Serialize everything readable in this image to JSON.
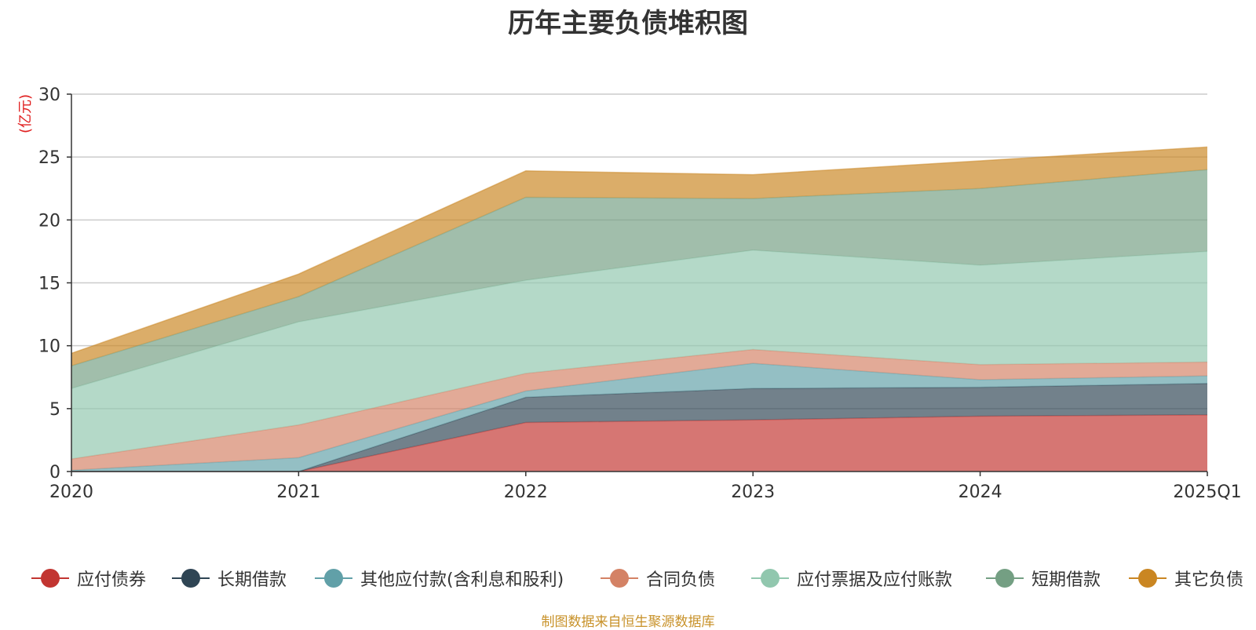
{
  "chart_data": {
    "type": "area",
    "stacked": true,
    "title": "历年主要负债堆积图",
    "ylabel": "(亿元)",
    "xlabel": "",
    "categories": [
      "2020",
      "2021",
      "2022",
      "2023",
      "2024",
      "2025Q1"
    ],
    "ylim": [
      0,
      30
    ],
    "yticks": [
      0,
      5,
      10,
      15,
      20,
      25,
      30
    ],
    "grid": true,
    "legend_position": "bottom",
    "series": [
      {
        "name": "应付债券",
        "color": "#c23531",
        "values": [
          0,
          0,
          3.9,
          4.1,
          4.4,
          4.5
        ]
      },
      {
        "name": "长期借款",
        "color": "#2f4554",
        "values": [
          0,
          0,
          2.0,
          2.5,
          2.3,
          2.5
        ]
      },
      {
        "name": "其他应付款(含利息和股利)",
        "color": "#61a0a8",
        "values": [
          0.1,
          1.1,
          0.5,
          2.0,
          0.6,
          0.6
        ]
      },
      {
        "name": "合同负债",
        "color": "#d48265",
        "values": [
          0.9,
          2.6,
          1.4,
          1.1,
          1.2,
          1.1
        ]
      },
      {
        "name": "应付票据及应付账款",
        "color": "#91c7ae",
        "values": [
          5.6,
          8.2,
          7.4,
          7.9,
          7.9,
          8.8
        ]
      },
      {
        "name": "短期借款",
        "color": "#749f83",
        "values": [
          1.8,
          2.0,
          6.6,
          4.1,
          6.1,
          6.5
        ]
      },
      {
        "name": "其它负债",
        "color": "#ca8622",
        "values": [
          1.0,
          1.8,
          2.1,
          1.9,
          2.2,
          1.8
        ]
      }
    ]
  },
  "source_note": "制图数据来自恒生聚源数据库"
}
